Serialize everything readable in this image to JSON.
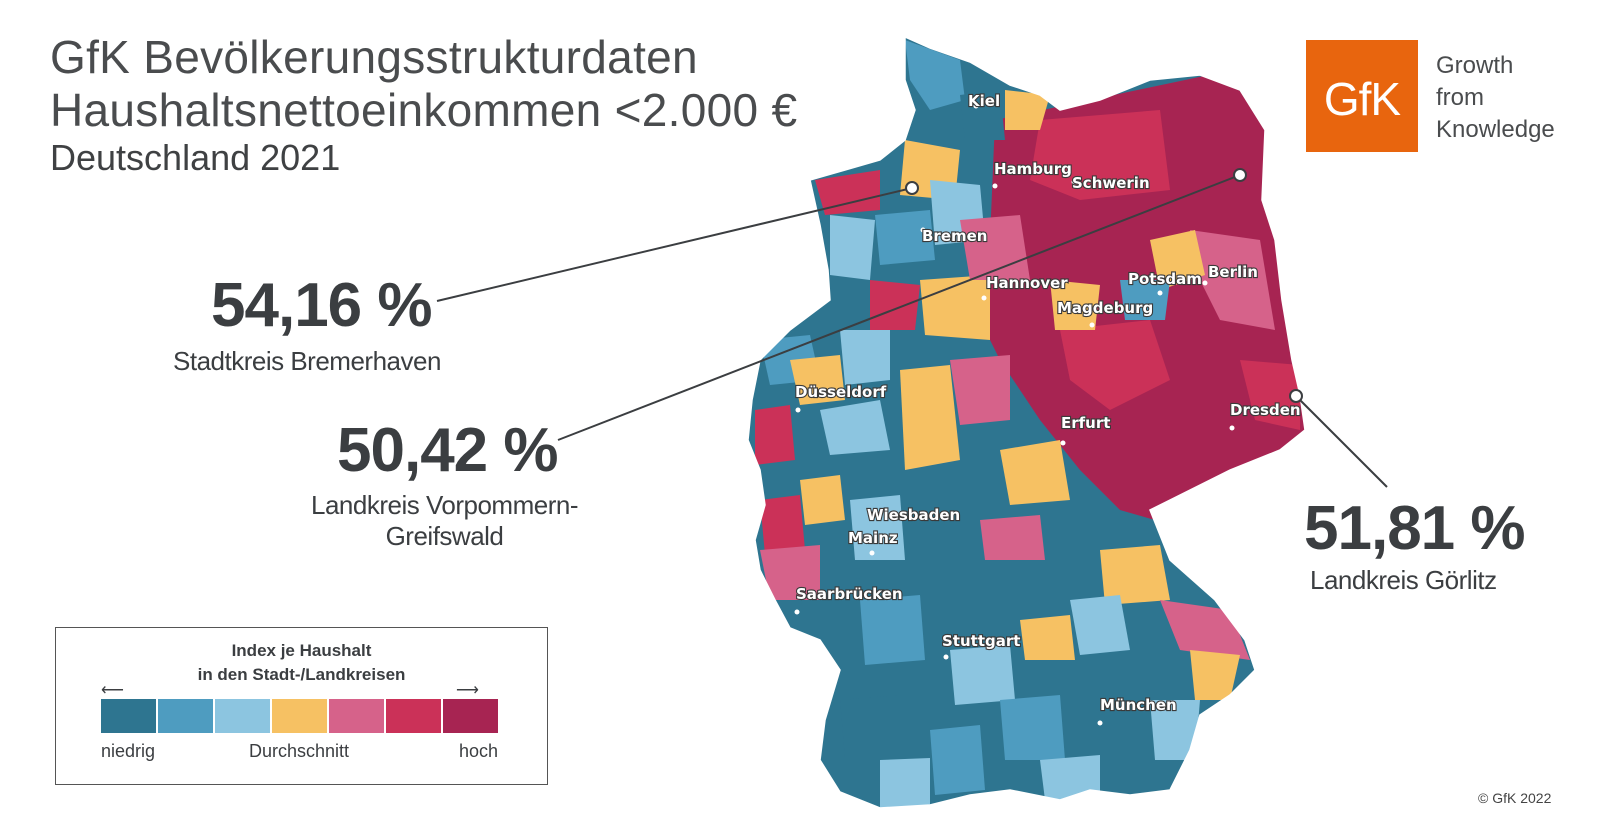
{
  "header": {
    "line1": "GfK Bevölkerungsstrukturdaten",
    "line2": "Haushaltsnettoeinkommen <2.000 €",
    "line3": "Deutschland 2021"
  },
  "logo": {
    "text": "GfK",
    "color": "#e8650e",
    "tagline": [
      "Growth",
      "from",
      "Knowledge"
    ]
  },
  "callouts": [
    {
      "value": "54,16 %",
      "label": "Stadtkreis Bremerhaven"
    },
    {
      "value": "50,42 %",
      "label_lines": [
        "Landkreis Vorpommern-",
        "Greifswald"
      ]
    },
    {
      "value": "51,81 %",
      "label": "Landkreis Görlitz"
    }
  ],
  "cities": [
    {
      "name": "Kiel"
    },
    {
      "name": "Hamburg"
    },
    {
      "name": "Schwerin"
    },
    {
      "name": "Bremen"
    },
    {
      "name": "Hannover"
    },
    {
      "name": "Potsdam"
    },
    {
      "name": "Berlin"
    },
    {
      "name": "Magdeburg"
    },
    {
      "name": "Düsseldorf"
    },
    {
      "name": "Erfurt"
    },
    {
      "name": "Dresden"
    },
    {
      "name": "Wiesbaden"
    },
    {
      "name": "Mainz"
    },
    {
      "name": "Saarbrücken"
    },
    {
      "name": "Stuttgart"
    },
    {
      "name": "München"
    }
  ],
  "legend": {
    "title_line1": "Index je Haushalt",
    "title_line2": "in den Stadt-/Landkreisen",
    "low": "niedrig",
    "mid": "Durchschnitt",
    "high": "hoch",
    "arrow_left": "⟵",
    "arrow_right": "⟶",
    "colors": [
      "#2e7590",
      "#4e9cc0",
      "#8cc5e0",
      "#f6c163",
      "#d6628a",
      "#cb3158",
      "#a72452"
    ]
  },
  "copyright": "© GfK 2022"
}
